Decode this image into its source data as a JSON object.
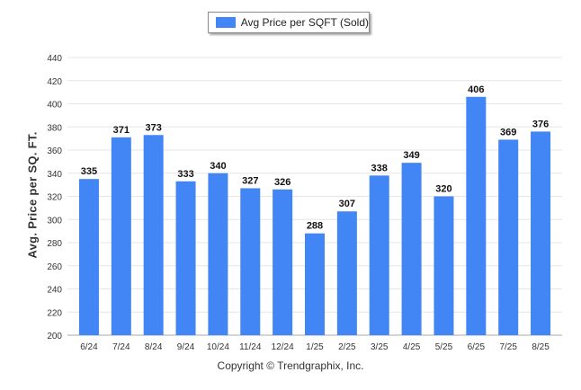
{
  "legend": {
    "label": "Avg Price per SQFT (Sold)",
    "color": "#4285f4"
  },
  "footer": {
    "copyright": "Copyright © Trendgraphix, Inc."
  },
  "chart_data": {
    "type": "bar",
    "title": "",
    "xlabel": "",
    "ylabel": "Avg. Price per SQ. FT.",
    "categories": [
      "6/24",
      "7/24",
      "8/24",
      "9/24",
      "10/24",
      "11/24",
      "12/24",
      "1/25",
      "2/25",
      "3/25",
      "4/25",
      "5/25",
      "6/25",
      "7/25",
      "8/25"
    ],
    "series": [
      {
        "name": "Avg Price per SQFT (Sold)",
        "values": [
          335,
          371,
          373,
          333,
          340,
          327,
          326,
          288,
          307,
          338,
          349,
          320,
          406,
          369,
          376
        ]
      }
    ],
    "ylim": [
      200,
      440
    ],
    "yticks": [
      200,
      220,
      240,
      260,
      280,
      300,
      320,
      340,
      360,
      380,
      400,
      420,
      440
    ],
    "grid": true,
    "legend_position": "top-center",
    "bar_color": "#4285f4"
  }
}
